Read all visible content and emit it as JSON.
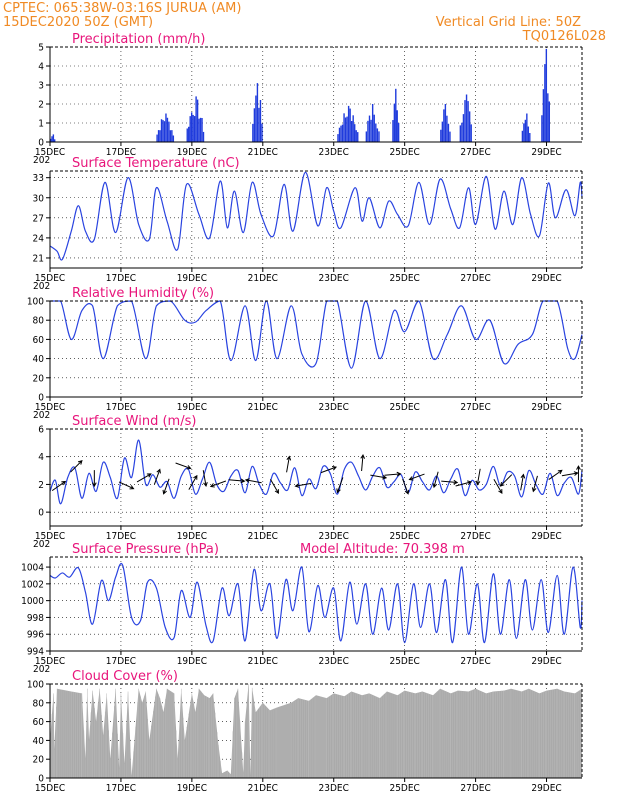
{
  "header": {
    "line1": "CPTEC:   065:38W-03:16S   JURUA (AM)",
    "line2": "15DEC2020  50Z  (GMT)",
    "right1": "Vertical Grid Line: 50Z",
    "right2": "TQ0126L028"
  },
  "colors": {
    "header": "#f08a24",
    "title": "#e8157b",
    "series": "#2a44e0",
    "cloud": "#aaaaaa"
  },
  "x_axis": {
    "labels": [
      "15DEC",
      "17DEC",
      "19DEC",
      "21DEC",
      "23DEC",
      "25DEC",
      "27DEC",
      "29DEC"
    ],
    "under_label": "202"
  },
  "chart_data": [
    {
      "type": "bar",
      "title": "Precipitation  (mm/h)",
      "ylim": [
        0,
        5
      ],
      "yticks": [
        "0",
        "1",
        "2",
        "3",
        "4",
        "5"
      ],
      "grid": true,
      "episodes": [
        {
          "start": 0.0,
          "end": 0.15,
          "peak": 0.4
        },
        {
          "start": 3.0,
          "end": 3.5,
          "peak": 1.5
        },
        {
          "start": 3.85,
          "end": 4.35,
          "peak": 2.4
        },
        {
          "start": 5.7,
          "end": 6.0,
          "peak": 3.1
        },
        {
          "start": 8.1,
          "end": 8.7,
          "peak": 1.9
        },
        {
          "start": 8.9,
          "end": 9.3,
          "peak": 2.0
        },
        {
          "start": 9.65,
          "end": 9.85,
          "peak": 2.8
        },
        {
          "start": 11.0,
          "end": 11.3,
          "peak": 2.0
        },
        {
          "start": 11.55,
          "end": 11.9,
          "peak": 2.5
        },
        {
          "start": 13.3,
          "end": 13.55,
          "peak": 1.5
        },
        {
          "start": 13.85,
          "end": 14.1,
          "peak": 4.9
        }
      ]
    },
    {
      "type": "line",
      "title": "Surface Temperature  (nC)",
      "ylim": [
        19.5,
        34
      ],
      "yticks": [
        "21",
        "24",
        "27",
        "30",
        "33"
      ],
      "grid": true,
      "x": [
        0,
        0.2,
        0.35,
        0.6,
        0.8,
        1.0,
        1.25,
        1.55,
        1.85,
        2.2,
        2.5,
        2.8,
        3.0,
        3.3,
        3.6,
        3.85,
        4.2,
        4.5,
        4.8,
        5.0,
        5.2,
        5.45,
        5.7,
        5.95,
        6.3,
        6.6,
        6.85,
        7.2,
        7.55,
        7.8,
        8.0,
        8.2,
        8.6,
        8.8,
        9.0,
        9.3,
        9.55,
        9.8,
        10.1,
        10.4,
        10.7,
        11.0,
        11.3,
        11.55,
        11.8,
        12.0,
        12.3,
        12.55,
        12.8,
        13.05,
        13.3,
        13.55,
        13.8,
        14.05,
        14.25,
        14.55,
        14.8,
        14.95,
        15.0
      ],
      "values": [
        22.8,
        22,
        20.8,
        25,
        28.8,
        25,
        23.8,
        32.3,
        24.8,
        33,
        26,
        23.8,
        31.5,
        26.5,
        22.3,
        32,
        27.5,
        24,
        32.5,
        25.5,
        31,
        24.8,
        32.3,
        27.5,
        24.3,
        32,
        25,
        33.8,
        25.8,
        31.5,
        28,
        25.5,
        31.5,
        26.5,
        30,
        25.5,
        29.5,
        27.5,
        25.8,
        32.3,
        26,
        32.8,
        28.3,
        25.5,
        31.5,
        26,
        33.2,
        25.3,
        31,
        26,
        33,
        27.5,
        24.3,
        32.2,
        27,
        31.2,
        27.3,
        32.3,
        30
      ]
    },
    {
      "type": "line",
      "title": "Relative Humidity  (%)",
      "ylim": [
        0,
        100
      ],
      "yticks": [
        "0",
        "20",
        "40",
        "60",
        "80",
        "100"
      ],
      "grid": true,
      "x": [
        0,
        0.3,
        0.6,
        0.9,
        1.2,
        1.5,
        1.9,
        2.3,
        2.7,
        3.0,
        3.4,
        3.8,
        4.1,
        4.4,
        4.8,
        5.1,
        5.5,
        5.8,
        6.1,
        6.4,
        6.8,
        7.1,
        7.5,
        7.8,
        8.1,
        8.5,
        8.9,
        9.3,
        9.7,
        10.0,
        10.4,
        10.8,
        11.2,
        11.6,
        12.0,
        12.4,
        12.8,
        13.2,
        13.6,
        13.9,
        14.3,
        14.6,
        14.8,
        15.0
      ],
      "values": [
        100,
        100,
        60,
        90,
        95,
        40,
        95,
        100,
        40,
        95,
        100,
        80,
        78,
        90,
        100,
        38,
        95,
        38,
        100,
        40,
        95,
        45,
        35,
        100,
        100,
        30,
        100,
        40,
        90,
        68,
        100,
        40,
        65,
        95,
        60,
        80,
        35,
        55,
        65,
        100,
        100,
        50,
        40,
        65
      ]
    },
    {
      "type": "line",
      "title": "Surface Wind  (m/s)",
      "ylim": [
        -1,
        6
      ],
      "yticks": [
        "0",
        "2",
        "4",
        "6"
      ],
      "grid": true,
      "x": [
        0,
        0.15,
        0.3,
        0.5,
        0.7,
        0.9,
        1.1,
        1.3,
        1.5,
        1.7,
        1.9,
        2.1,
        2.3,
        2.5,
        2.7,
        2.9,
        3.1,
        3.3,
        3.5,
        3.7,
        3.9,
        4.1,
        4.3,
        4.5,
        4.7,
        4.9,
        5.1,
        5.3,
        5.5,
        5.7,
        5.9,
        6.1,
        6.3,
        6.5,
        6.7,
        6.9,
        7.1,
        7.3,
        7.5,
        7.7,
        7.9,
        8.1,
        8.3,
        8.5,
        8.7,
        8.9,
        9.1,
        9.3,
        9.5,
        9.7,
        9.9,
        10.1,
        10.3,
        10.5,
        10.7,
        10.9,
        11.1,
        11.3,
        11.5,
        11.7,
        11.9,
        12.1,
        12.3,
        12.5,
        12.7,
        12.9,
        13.1,
        13.3,
        13.5,
        13.7,
        13.9,
        14.1,
        14.3,
        14.5,
        14.7,
        14.9,
        15.0
      ],
      "values": [
        1.5,
        2.3,
        0.6,
        2.5,
        3.2,
        1.0,
        2.8,
        1.5,
        3.6,
        2.5,
        1.0,
        3.9,
        2.5,
        5.2,
        2.0,
        2.7,
        1.8,
        2.2,
        1.0,
        2.6,
        3.1,
        1.3,
        2.4,
        3.6,
        2.0,
        1.5,
        2.6,
        3.0,
        1.4,
        3.3,
        2.0,
        1.3,
        2.8,
        2.1,
        1.6,
        3.2,
        1.2,
        2.4,
        1.7,
        3.3,
        2.8,
        1.3,
        3.1,
        3.6,
        2.6,
        1.6,
        2.6,
        3.2,
        1.8,
        2.2,
        2.7,
        1.4,
        2.9,
        2.2,
        1.6,
        2.6,
        1.4,
        2.4,
        3.1,
        1.2,
        2.3,
        1.6,
        2.0,
        3.3,
        1.9,
        2.9,
        2.6,
        1.1,
        3.0,
        2.0,
        1.3,
        2.8,
        1.2,
        2.1,
        2.5,
        1.3,
        3.0
      ]
    },
    {
      "type": "line",
      "title": "Surface Pressure  (hPa)",
      "annotation": "Model Altitude: 70.398  m",
      "ylim": [
        994,
        1005.2
      ],
      "yticks": [
        "994",
        "996",
        "998",
        "1000",
        "1002",
        "1004"
      ],
      "grid": true,
      "x": [
        0,
        0.15,
        0.35,
        0.55,
        0.8,
        1.0,
        1.2,
        1.45,
        1.65,
        1.85,
        2.05,
        2.3,
        2.55,
        2.75,
        3.0,
        3.25,
        3.5,
        3.7,
        3.95,
        4.15,
        4.4,
        4.6,
        4.85,
        5.05,
        5.3,
        5.5,
        5.75,
        5.95,
        6.2,
        6.4,
        6.65,
        6.85,
        7.1,
        7.3,
        7.55,
        7.75,
        8.0,
        8.2,
        8.45,
        8.65,
        8.9,
        9.1,
        9.35,
        9.55,
        9.8,
        10.0,
        10.25,
        10.45,
        10.7,
        10.9,
        11.15,
        11.35,
        11.6,
        11.8,
        12.05,
        12.25,
        12.5,
        12.7,
        12.95,
        13.15,
        13.4,
        13.6,
        13.85,
        14.05,
        14.3,
        14.5,
        14.75,
        14.95,
        15.0
      ],
      "values": [
        1003.0,
        1002.7,
        1003.3,
        1002.8,
        1003.9,
        1001.0,
        997.2,
        1002.4,
        1000.0,
        1002.8,
        1004.2,
        998.0,
        997.6,
        1002.2,
        1001.5,
        996.8,
        995.6,
        1001.2,
        998.0,
        1002.2,
        997.0,
        995.2,
        1001.5,
        998.2,
        1002.0,
        995.2,
        1003.7,
        998.8,
        1002.0,
        995.5,
        1002.5,
        998.8,
        1004.0,
        996.3,
        1001.8,
        998.0,
        1001.5,
        995.2,
        1002.2,
        997.2,
        1002.0,
        996.0,
        1001.5,
        996.5,
        1002.0,
        995.0,
        1002.0,
        996.8,
        1002.0,
        996.2,
        1002.5,
        995.0,
        1004.0,
        996.0,
        1002.0,
        995.0,
        1003.2,
        996.0,
        1002.5,
        995.5,
        1002.5,
        996.5,
        1002.5,
        996.2,
        1003.0,
        996.0,
        1004.0,
        996.8,
        1000.0
      ]
    },
    {
      "type": "area",
      "title": "Cloud Cover  (%)",
      "ylim": [
        0,
        100
      ],
      "yticks": [
        "0",
        "20",
        "40",
        "60",
        "80",
        "100"
      ],
      "grid": true,
      "x": [
        0,
        0.1,
        0.12,
        0.2,
        0.6,
        0.9,
        1.0,
        1.05,
        1.1,
        1.2,
        1.3,
        1.4,
        1.5,
        1.6,
        1.7,
        1.85,
        1.95,
        2.0,
        2.1,
        2.2,
        2.3,
        2.5,
        2.6,
        2.7,
        2.8,
        3.0,
        3.1,
        3.2,
        3.3,
        3.5,
        3.6,
        3.7,
        3.8,
        4.0,
        4.1,
        4.2,
        4.35,
        4.5,
        4.6,
        4.75,
        4.85,
        5.0,
        5.1,
        5.2,
        5.3,
        5.45,
        5.5,
        5.6,
        5.65,
        5.7,
        5.8,
        6.0,
        6.2,
        6.4,
        6.8,
        7.0,
        7.3,
        7.5,
        7.8,
        8.0,
        8.3,
        8.5,
        8.8,
        9.0,
        9.3,
        9.5,
        9.8,
        10.0,
        10.3,
        10.5,
        10.8,
        11.0,
        11.3,
        11.5,
        11.8,
        12.0,
        12.3,
        12.5,
        12.8,
        13.0,
        13.3,
        13.5,
        13.8,
        14.0,
        14.3,
        14.5,
        14.8,
        15.0
      ],
      "values": [
        40,
        90,
        30,
        95,
        92,
        90,
        20,
        95,
        40,
        93,
        60,
        95,
        45,
        90,
        20,
        95,
        10,
        90,
        15,
        92,
        2,
        95,
        80,
        92,
        40,
        95,
        85,
        70,
        95,
        90,
        20,
        95,
        40,
        90,
        70,
        95,
        88,
        85,
        90,
        35,
        5,
        8,
        4,
        85,
        95,
        5,
        60,
        100,
        2,
        96,
        70,
        80,
        72,
        75,
        80,
        85,
        82,
        88,
        85,
        90,
        87,
        92,
        88,
        90,
        85,
        92,
        88,
        93,
        90,
        92,
        88,
        95,
        90,
        93,
        92,
        95,
        90,
        92,
        93,
        95,
        92,
        95,
        90,
        93,
        95,
        92,
        90,
        95
      ]
    }
  ],
  "wind_vectors": {
    "x": [
      0.2,
      0.7,
      1.25,
      2.1,
      2.6,
      3.0,
      3.3,
      3.7,
      4.0,
      4.35,
      4.8,
      5.2,
      5.8,
      6.3,
      6.7,
      7.2,
      7.8,
      8.2,
      8.8,
      9.2,
      9.6,
      10.0,
      10.4,
      10.9,
      11.2,
      11.6,
      12.1,
      12.6,
      12.9,
      13.3,
      13.7,
      14.2,
      14.6,
      14.9
    ],
    "y": [
      1.8,
      3.2,
      2.6,
      2.0,
      2.4,
      2.4,
      2.0,
      3.4,
      2.0,
      2.6,
      2.1,
      2.3,
      2.2,
      2.0,
      3.3,
      2.0,
      3.0,
      2.1,
      3.4,
      2.6,
      2.7,
      2.0,
      2.6,
      2.5,
      2.2,
      2.0,
      2.7,
      2.0,
      2.4,
      2.0,
      2.2,
      2.6,
      2.7,
      2.6
    ],
    "dir": [
      55,
      45,
      180,
      115,
      60,
      20,
      200,
      110,
      30,
      170,
      250,
      95,
      280,
      150,
      10,
      260,
      70,
      200,
      5,
      100,
      85,
      160,
      250,
      195,
      95,
      75,
      190,
      150,
      225,
      10,
      195,
      55,
      80,
      0
    ]
  }
}
